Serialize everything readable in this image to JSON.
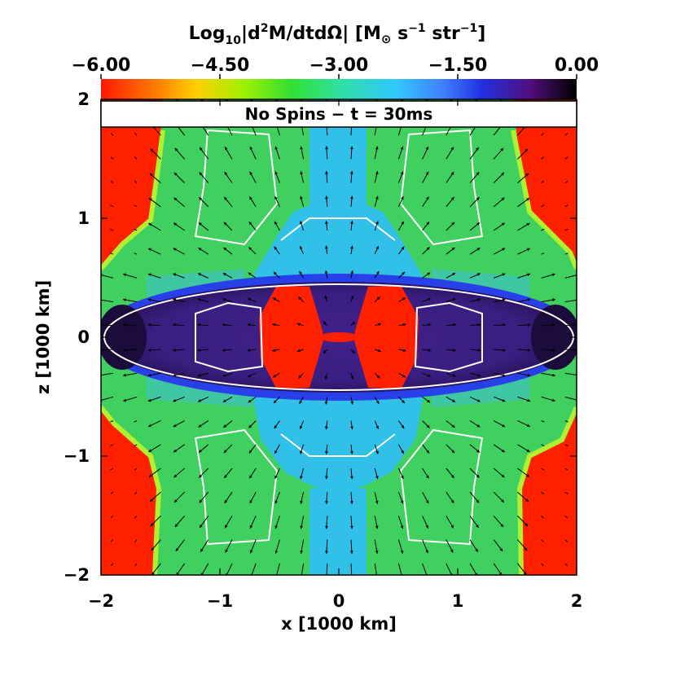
{
  "chart_data": {
    "type": "heatmap",
    "title": "No Spins − t = 30ms",
    "colorbar": {
      "label_prefix": "Log",
      "label_sub": "10",
      "label_main": "|d",
      "label_sup2": "2",
      "label_rest": "M/dtdΩ| [M",
      "label_sun": "⊙",
      "label_units": " s",
      "label_sup_s": "−1",
      "label_str": " str",
      "label_sup_str": "−1",
      "label_close": "]",
      "ticks": [
        "−6.00",
        "−4.50",
        "−3.00",
        "−1.50",
        "0.00"
      ],
      "range": [
        -6.0,
        0.0
      ],
      "colors": [
        "#ff1a00",
        "#ff8000",
        "#ffd000",
        "#a0f000",
        "#30e030",
        "#30e0a0",
        "#30c8ff",
        "#4080ff",
        "#2030e0",
        "#501080",
        "#000000"
      ]
    },
    "xlabel": "x [1000 km]",
    "ylabel": "z [1000 km]",
    "xlim": [
      -2,
      2
    ],
    "ylim": [
      -2,
      2
    ],
    "xticks": [
      "−2",
      "−1",
      "0",
      "1",
      "2"
    ],
    "yticks": [
      "2",
      "1",
      "0",
      "−1",
      "−2"
    ],
    "regions": {
      "outer": "#ff2000",
      "halo": "#40d060",
      "mid": "#30c0e8",
      "disk_edge": "#2840e8",
      "disk": "#40208a",
      "disk_core": "#1c0c3c",
      "center": "#ff2000"
    }
  }
}
